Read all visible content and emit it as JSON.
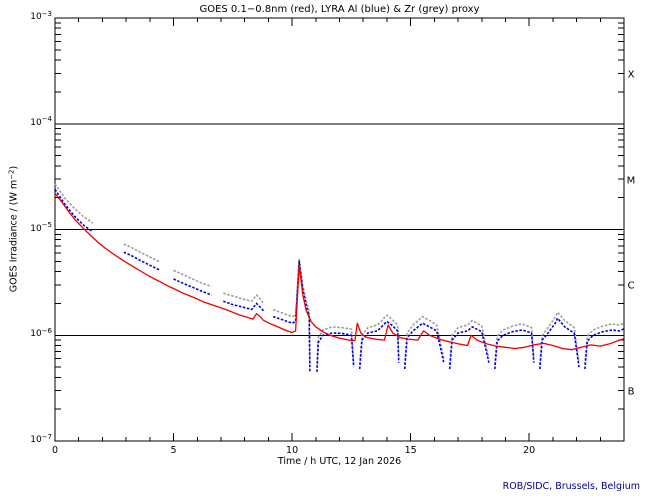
{
  "chart_data": {
    "type": "line",
    "title": "GOES 0.1−0.8nm (red), LYRA Al (blue) & Zr (grey) proxy",
    "xlabel": "Time / h UTC, 12 Jan 2026",
    "ylabel": {
      "prefix": "GOES Irradiance / (W m",
      "sup": "−2",
      "suffix": ")"
    },
    "credit": "ROB/SIDC, Brussels, Belgium",
    "grid": false,
    "legend_position": "none (encoded in title)",
    "x_axis": {
      "min": 0,
      "max": 24,
      "major_ticks": [
        0,
        5,
        10,
        15,
        20
      ],
      "minor_step": 1
    },
    "y_axis": {
      "log": true,
      "exponent_max": -3,
      "exponent_min": -7,
      "tick_base": "10",
      "tick_exponents": [
        -3,
        -4,
        -5,
        -6,
        -7
      ],
      "class_line_exponents": [
        -4,
        -5,
        -6
      ]
    },
    "flare_classes": [
      {
        "label": "X",
        "band": [
          -3,
          -4
        ]
      },
      {
        "label": "M",
        "band": [
          -4,
          -5
        ]
      },
      {
        "label": "C",
        "band": [
          -5,
          -6
        ]
      },
      {
        "label": "B",
        "band": [
          -6,
          -7
        ]
      }
    ],
    "colors": {
      "red": "#ee0000",
      "blue": "#0000dd",
      "grey": "#9c9c9c",
      "frame": "#000000",
      "class_line": "#000000",
      "title": "#000000",
      "credit": "#00008b"
    },
    "series": [
      {
        "name": "GOES 0.1-0.8nm",
        "color_key": "red",
        "style": "solid",
        "points": [
          [
            0,
            2.2e-05
          ],
          [
            0.3,
            1.8e-05
          ],
          [
            0.6,
            1.45e-05
          ],
          [
            0.9,
            1.2e-05
          ],
          [
            1.2,
            1.02e-05
          ],
          [
            1.5,
            8.8e-06
          ],
          [
            1.8,
            7.6e-06
          ],
          [
            2.1,
            6.7e-06
          ],
          [
            2.4,
            6e-06
          ],
          [
            2.7,
            5.4e-06
          ],
          [
            3.0,
            4.9e-06
          ],
          [
            3.3,
            4.45e-06
          ],
          [
            3.6,
            4.05e-06
          ],
          [
            3.9,
            3.7e-06
          ],
          [
            4.2,
            3.4e-06
          ],
          [
            4.5,
            3.15e-06
          ],
          [
            4.8,
            2.9e-06
          ],
          [
            5.1,
            2.7e-06
          ],
          [
            5.4,
            2.5e-06
          ],
          [
            5.7,
            2.35e-06
          ],
          [
            6.0,
            2.2e-06
          ],
          [
            6.3,
            2.05e-06
          ],
          [
            6.6,
            1.95e-06
          ],
          [
            6.9,
            1.85e-06
          ],
          [
            7.2,
            1.75e-06
          ],
          [
            7.5,
            1.65e-06
          ],
          [
            7.8,
            1.55e-06
          ],
          [
            8.1,
            1.48e-06
          ],
          [
            8.35,
            1.42e-06
          ],
          [
            8.5,
            1.6e-06
          ],
          [
            8.65,
            1.5e-06
          ],
          [
            8.8,
            1.38e-06
          ],
          [
            9.1,
            1.28e-06
          ],
          [
            9.4,
            1.2e-06
          ],
          [
            9.7,
            1.12e-06
          ],
          [
            10.0,
            1.06e-06
          ],
          [
            10.15,
            1.1e-06
          ],
          [
            10.3,
            4.6e-06
          ],
          [
            10.45,
            2.4e-06
          ],
          [
            10.6,
            1.7e-06
          ],
          [
            10.8,
            1.35e-06
          ],
          [
            11.0,
            1.2e-06
          ],
          [
            11.3,
            1.08e-06
          ],
          [
            11.6,
            1e-06
          ],
          [
            12.0,
            9.4e-07
          ],
          [
            12.4,
            9e-07
          ],
          [
            12.65,
            8.9e-07
          ],
          [
            12.75,
            1.3e-06
          ],
          [
            12.9,
            1.05e-06
          ],
          [
            13.1,
            9.6e-07
          ],
          [
            13.5,
            9.2e-07
          ],
          [
            13.9,
            9e-07
          ],
          [
            14.05,
            1.25e-06
          ],
          [
            14.25,
            1.05e-06
          ],
          [
            14.55,
            9.5e-07
          ],
          [
            14.9,
            9.2e-07
          ],
          [
            15.3,
            9e-07
          ],
          [
            15.55,
            1.1e-06
          ],
          [
            15.8,
            1e-06
          ],
          [
            16.2,
            9.2e-07
          ],
          [
            16.6,
            8.7e-07
          ],
          [
            17.0,
            8.3e-07
          ],
          [
            17.4,
            8e-07
          ],
          [
            17.55,
            1e-06
          ],
          [
            17.8,
            9e-07
          ],
          [
            18.2,
            8.3e-07
          ],
          [
            18.6,
            7.9e-07
          ],
          [
            19.0,
            7.7e-07
          ],
          [
            19.4,
            7.5e-07
          ],
          [
            19.8,
            7.7e-07
          ],
          [
            20.2,
            8.1e-07
          ],
          [
            20.6,
            8.4e-07
          ],
          [
            21.0,
            8e-07
          ],
          [
            21.4,
            7.5e-07
          ],
          [
            21.8,
            7.3e-07
          ],
          [
            22.2,
            7.7e-07
          ],
          [
            22.6,
            8.1e-07
          ],
          [
            23.0,
            7.9e-07
          ],
          [
            23.4,
            8.3e-07
          ],
          [
            23.7,
            8.8e-07
          ],
          [
            24,
            9.3e-07
          ]
        ]
      },
      {
        "name": "LYRA Al proxy",
        "color_key": "blue",
        "style": "dotted",
        "segments": [
          [
            [
              0,
              2.4e-05
            ],
            [
              0.4,
              1.75e-05
            ],
            [
              0.8,
              1.35e-05
            ],
            [
              1.2,
              1.1e-05
            ],
            [
              1.6,
              9.5e-06
            ]
          ],
          [
            [
              2.9,
              6.1e-06
            ],
            [
              3.2,
              5.7e-06
            ],
            [
              3.6,
              5.1e-06
            ],
            [
              4.0,
              4.6e-06
            ],
            [
              4.45,
              4.1e-06
            ]
          ],
          [
            [
              5.0,
              3.4e-06
            ],
            [
              5.4,
              3.1e-06
            ],
            [
              5.8,
              2.85e-06
            ],
            [
              6.2,
              2.6e-06
            ],
            [
              6.6,
              2.4e-06
            ]
          ],
          [
            [
              7.1,
              2.1e-06
            ],
            [
              7.5,
              1.95e-06
            ],
            [
              7.9,
              1.85e-06
            ],
            [
              8.3,
              1.75e-06
            ],
            [
              8.5,
              2e-06
            ],
            [
              8.65,
              1.85e-06
            ],
            [
              8.8,
              1.7e-06
            ]
          ],
          [
            [
              9.2,
              1.5e-06
            ],
            [
              9.6,
              1.4e-06
            ],
            [
              10.0,
              1.3e-06
            ],
            [
              10.15,
              1.35e-06
            ],
            [
              10.3,
              5e-06
            ],
            [
              10.45,
              2.7e-06
            ],
            [
              10.6,
              1.9e-06
            ],
            [
              10.72,
              1.5e-06
            ],
            [
              10.75,
              4.5e-07
            ]
          ],
          [
            [
              11.05,
              4.5e-07
            ],
            [
              11.1,
              8.5e-07
            ],
            [
              11.3,
              1e-06
            ],
            [
              11.7,
              1.05e-06
            ],
            [
              12.1,
              1.04e-06
            ],
            [
              12.5,
              1e-06
            ],
            [
              12.6,
              5e-07
            ]
          ],
          [
            [
              12.85,
              4.8e-07
            ],
            [
              12.95,
              9e-07
            ],
            [
              13.2,
              1.05e-06
            ],
            [
              13.6,
              1.1e-06
            ],
            [
              14.0,
              1.35e-06
            ],
            [
              14.2,
              1.25e-06
            ],
            [
              14.45,
              1.1e-06
            ],
            [
              14.5,
              5.5e-07
            ]
          ],
          [
            [
              14.75,
              4.8e-07
            ],
            [
              14.85,
              9.5e-07
            ],
            [
              15.1,
              1.1e-06
            ],
            [
              15.5,
              1.3e-06
            ],
            [
              15.8,
              1.2e-06
            ],
            [
              16.1,
              1.1e-06
            ],
            [
              16.4,
              5.5e-07
            ]
          ],
          [
            [
              16.65,
              4.8e-07
            ],
            [
              16.75,
              9e-07
            ],
            [
              17.0,
              1.05e-06
            ],
            [
              17.4,
              1.1e-06
            ],
            [
              17.6,
              1.2e-06
            ],
            [
              18.0,
              1.08e-06
            ],
            [
              18.3,
              5.5e-07
            ]
          ],
          [
            [
              18.55,
              4.8e-07
            ],
            [
              18.65,
              8.8e-07
            ],
            [
              18.9,
              1e-06
            ],
            [
              19.3,
              1.08e-06
            ],
            [
              19.7,
              1.12e-06
            ],
            [
              20.1,
              1.05e-06
            ],
            [
              20.2,
              5.5e-07
            ]
          ],
          [
            [
              20.45,
              4.8e-07
            ],
            [
              20.55,
              9e-07
            ],
            [
              20.8,
              1.05e-06
            ],
            [
              21.1,
              1.3e-06
            ],
            [
              21.2,
              1.45e-06
            ],
            [
              21.5,
              1.2e-06
            ],
            [
              21.9,
              1.05e-06
            ],
            [
              22.1,
              5e-07
            ]
          ],
          [
            [
              22.35,
              4.8e-07
            ],
            [
              22.45,
              8.8e-07
            ],
            [
              22.7,
              1e-06
            ],
            [
              23.1,
              1.08e-06
            ],
            [
              23.5,
              1.12e-06
            ],
            [
              23.8,
              1.1e-06
            ],
            [
              24,
              1.15e-06
            ]
          ]
        ]
      },
      {
        "name": "LYRA Zr proxy",
        "color_key": "grey",
        "style": "dotted",
        "segments": [
          [
            [
              0,
              2.7e-05
            ],
            [
              0.4,
              2e-05
            ],
            [
              0.8,
              1.6e-05
            ],
            [
              1.2,
              1.32e-05
            ],
            [
              1.6,
              1.15e-05
            ]
          ],
          [
            [
              2.9,
              7.3e-06
            ],
            [
              3.2,
              6.8e-06
            ],
            [
              3.6,
              6.1e-06
            ],
            [
              4.0,
              5.5e-06
            ],
            [
              4.45,
              4.9e-06
            ]
          ],
          [
            [
              5.0,
              4.1e-06
            ],
            [
              5.4,
              3.75e-06
            ],
            [
              5.8,
              3.4e-06
            ],
            [
              6.2,
              3.1e-06
            ],
            [
              6.6,
              2.9e-06
            ]
          ],
          [
            [
              7.1,
              2.5e-06
            ],
            [
              7.5,
              2.35e-06
            ],
            [
              7.9,
              2.2e-06
            ],
            [
              8.3,
              2.1e-06
            ],
            [
              8.5,
              2.4e-06
            ],
            [
              8.65,
              2.2e-06
            ],
            [
              8.8,
              2e-06
            ]
          ],
          [
            [
              9.2,
              1.75e-06
            ],
            [
              9.6,
              1.62e-06
            ],
            [
              10.0,
              1.5e-06
            ],
            [
              10.15,
              1.55e-06
            ],
            [
              10.3,
              5.3e-06
            ],
            [
              10.45,
              2.95e-06
            ],
            [
              10.6,
              2.1e-06
            ],
            [
              10.72,
              1.7e-06
            ],
            [
              10.75,
              5e-07
            ]
          ],
          [
            [
              11.05,
              5e-07
            ],
            [
              11.1,
              9.5e-07
            ],
            [
              11.3,
              1.12e-06
            ],
            [
              11.7,
              1.2e-06
            ],
            [
              12.1,
              1.18e-06
            ],
            [
              12.5,
              1.14e-06
            ],
            [
              12.6,
              5.5e-07
            ]
          ],
          [
            [
              12.85,
              5.3e-07
            ],
            [
              12.95,
              1e-06
            ],
            [
              13.2,
              1.18e-06
            ],
            [
              13.6,
              1.25e-06
            ],
            [
              14.0,
              1.55e-06
            ],
            [
              14.2,
              1.42e-06
            ],
            [
              14.45,
              1.25e-06
            ],
            [
              14.5,
              6e-07
            ]
          ],
          [
            [
              14.75,
              5.3e-07
            ],
            [
              14.85,
              1.05e-06
            ],
            [
              15.1,
              1.25e-06
            ],
            [
              15.5,
              1.5e-06
            ],
            [
              15.8,
              1.38e-06
            ],
            [
              16.1,
              1.25e-06
            ],
            [
              16.4,
              6e-07
            ]
          ],
          [
            [
              16.65,
              5.3e-07
            ],
            [
              16.75,
              1e-06
            ],
            [
              17.0,
              1.18e-06
            ],
            [
              17.4,
              1.25e-06
            ],
            [
              17.6,
              1.38e-06
            ],
            [
              18.0,
              1.22e-06
            ],
            [
              18.3,
              6e-07
            ]
          ],
          [
            [
              18.55,
              5.3e-07
            ],
            [
              18.65,
              9.8e-07
            ],
            [
              18.9,
              1.12e-06
            ],
            [
              19.3,
              1.22e-06
            ],
            [
              19.7,
              1.28e-06
            ],
            [
              20.1,
              1.18e-06
            ],
            [
              20.2,
              6e-07
            ]
          ],
          [
            [
              20.45,
              5.3e-07
            ],
            [
              20.55,
              1e-06
            ],
            [
              20.8,
              1.18e-06
            ],
            [
              21.1,
              1.48e-06
            ],
            [
              21.2,
              1.65e-06
            ],
            [
              21.5,
              1.38e-06
            ],
            [
              21.9,
              1.18e-06
            ],
            [
              22.1,
              5.5e-07
            ]
          ],
          [
            [
              22.35,
              5.3e-07
            ],
            [
              22.45,
              9.8e-07
            ],
            [
              22.7,
              1.12e-06
            ],
            [
              23.1,
              1.22e-06
            ],
            [
              23.5,
              1.28e-06
            ],
            [
              23.8,
              1.25e-06
            ],
            [
              24,
              1.3e-06
            ]
          ]
        ]
      }
    ]
  }
}
